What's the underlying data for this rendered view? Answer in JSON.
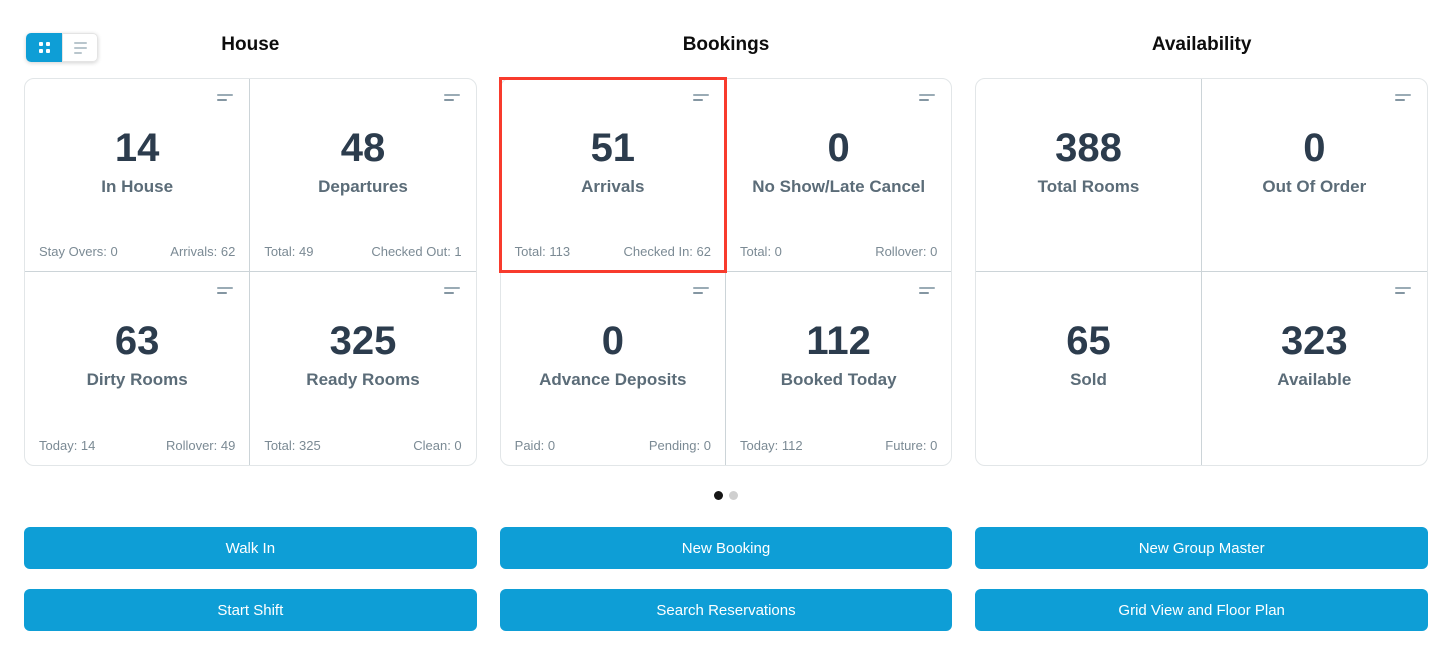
{
  "view_toggle": {
    "grid_active": true,
    "list_active": false
  },
  "sections": [
    {
      "title": "House",
      "cards": [
        {
          "value": "14",
          "label": "In House",
          "footer_left": "Stay Overs: 0",
          "footer_right": "Arrivals: 62",
          "menu_icon": true,
          "highlighted": false
        },
        {
          "value": "48",
          "label": "Departures",
          "footer_left": "Total: 49",
          "footer_right": "Checked Out: 1",
          "menu_icon": true,
          "highlighted": false
        },
        {
          "value": "63",
          "label": "Dirty Rooms",
          "footer_left": "Today: 14",
          "footer_right": "Rollover: 49",
          "menu_icon": true,
          "highlighted": false
        },
        {
          "value": "325",
          "label": "Ready Rooms",
          "footer_left": "Total: 325",
          "footer_right": "Clean: 0",
          "menu_icon": true,
          "highlighted": false
        }
      ]
    },
    {
      "title": "Bookings",
      "cards": [
        {
          "value": "51",
          "label": "Arrivals",
          "footer_left": "Total: 113",
          "footer_right": "Checked In: 62",
          "menu_icon": true,
          "highlighted": true
        },
        {
          "value": "0",
          "label": "No Show/Late Cancel",
          "footer_left": "Total: 0",
          "footer_right": "Rollover: 0",
          "menu_icon": true,
          "highlighted": false
        },
        {
          "value": "0",
          "label": "Advance Deposits",
          "footer_left": "Paid: 0",
          "footer_right": "Pending: 0",
          "menu_icon": true,
          "highlighted": false
        },
        {
          "value": "112",
          "label": "Booked Today",
          "footer_left": "Today: 112",
          "footer_right": "Future: 0",
          "menu_icon": true,
          "highlighted": false
        }
      ]
    },
    {
      "title": "Availability",
      "cards": [
        {
          "value": "388",
          "label": "Total Rooms",
          "footer_left": "",
          "footer_right": "",
          "menu_icon": false,
          "highlighted": false
        },
        {
          "value": "0",
          "label": "Out Of Order",
          "footer_left": "",
          "footer_right": "",
          "menu_icon": true,
          "highlighted": false
        },
        {
          "value": "65",
          "label": "Sold",
          "footer_left": "",
          "footer_right": "",
          "menu_icon": false,
          "highlighted": false
        },
        {
          "value": "323",
          "label": "Available",
          "footer_left": "",
          "footer_right": "",
          "menu_icon": true,
          "highlighted": false
        }
      ]
    }
  ],
  "pagination": [
    {
      "active": true
    },
    {
      "active": false
    }
  ],
  "action_columns": [
    {
      "labels": [
        "Walk In",
        "Start Shift"
      ]
    },
    {
      "labels": [
        "New Booking",
        "Search Reservations"
      ]
    },
    {
      "labels": [
        "New Group Master",
        "Grid View and Floor Plan"
      ]
    }
  ],
  "colors": {
    "accent_blue": "#0e9ed6",
    "highlight_red": "#f83b2d",
    "value_dark": "#2c3c4d",
    "label_slate": "#5b6c78",
    "footer_gray": "#7b8a94",
    "active_dot": "#161616",
    "inactive_dot": "#cfcfcf"
  }
}
